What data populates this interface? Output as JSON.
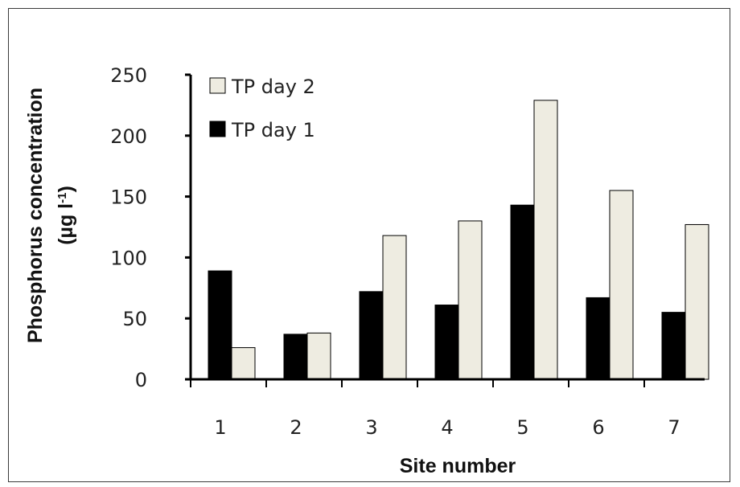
{
  "chart_data": {
    "type": "bar",
    "categories": [
      "1",
      "2",
      "3",
      "4",
      "5",
      "6",
      "7"
    ],
    "series": [
      {
        "name": "TP day 1",
        "values": [
          89,
          37,
          72,
          61,
          143,
          67,
          55
        ],
        "color": "#000000"
      },
      {
        "name": "TP day 2",
        "values": [
          26,
          38,
          118,
          130,
          229,
          155,
          127
        ],
        "color": "#eeece1"
      }
    ],
    "title": "",
    "xlabel": "Site number",
    "ylabel_line1": "Phosphorus concentration",
    "ylabel_line2_prefix": "(µg l",
    "ylabel_line2_sup": "-1",
    "ylabel_line2_suffix": ")",
    "ylim": [
      0,
      250
    ],
    "yticks": [
      "0",
      "50",
      "100",
      "150",
      "200",
      "250"
    ],
    "grid": false,
    "legend_position": "top-left",
    "legend_order": [
      "TP day 2",
      "TP day 1"
    ]
  }
}
